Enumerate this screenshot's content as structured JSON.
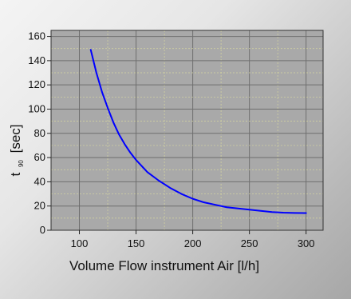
{
  "chart_data": {
    "type": "line",
    "title": "",
    "xlabel": "Volume Flow instrument Air [l/h]",
    "ylabel": "t",
    "ylabel_subscript": "90",
    "ylabel_unit": "[sec]",
    "xlim": [
      75,
      315
    ],
    "ylim": [
      0,
      165
    ],
    "x_ticks": [
      100,
      150,
      200,
      250,
      300
    ],
    "y_ticks": [
      0,
      20,
      40,
      60,
      80,
      100,
      120,
      140,
      160
    ],
    "grid": true,
    "series": [
      {
        "name": "",
        "color": "#0000ff",
        "x": [
          110,
          115,
          120,
          125,
          130,
          135,
          140,
          145,
          150,
          155,
          160,
          170,
          180,
          190,
          200,
          210,
          220,
          230,
          240,
          250,
          260,
          270,
          280,
          290,
          300
        ],
        "y": [
          149,
          130,
          114,
          101,
          89,
          79,
          71,
          64,
          58,
          53,
          48,
          41,
          35,
          30,
          26,
          23,
          21,
          19,
          18,
          17,
          16,
          15,
          14.5,
          14.3,
          14.2
        ]
      }
    ]
  }
}
